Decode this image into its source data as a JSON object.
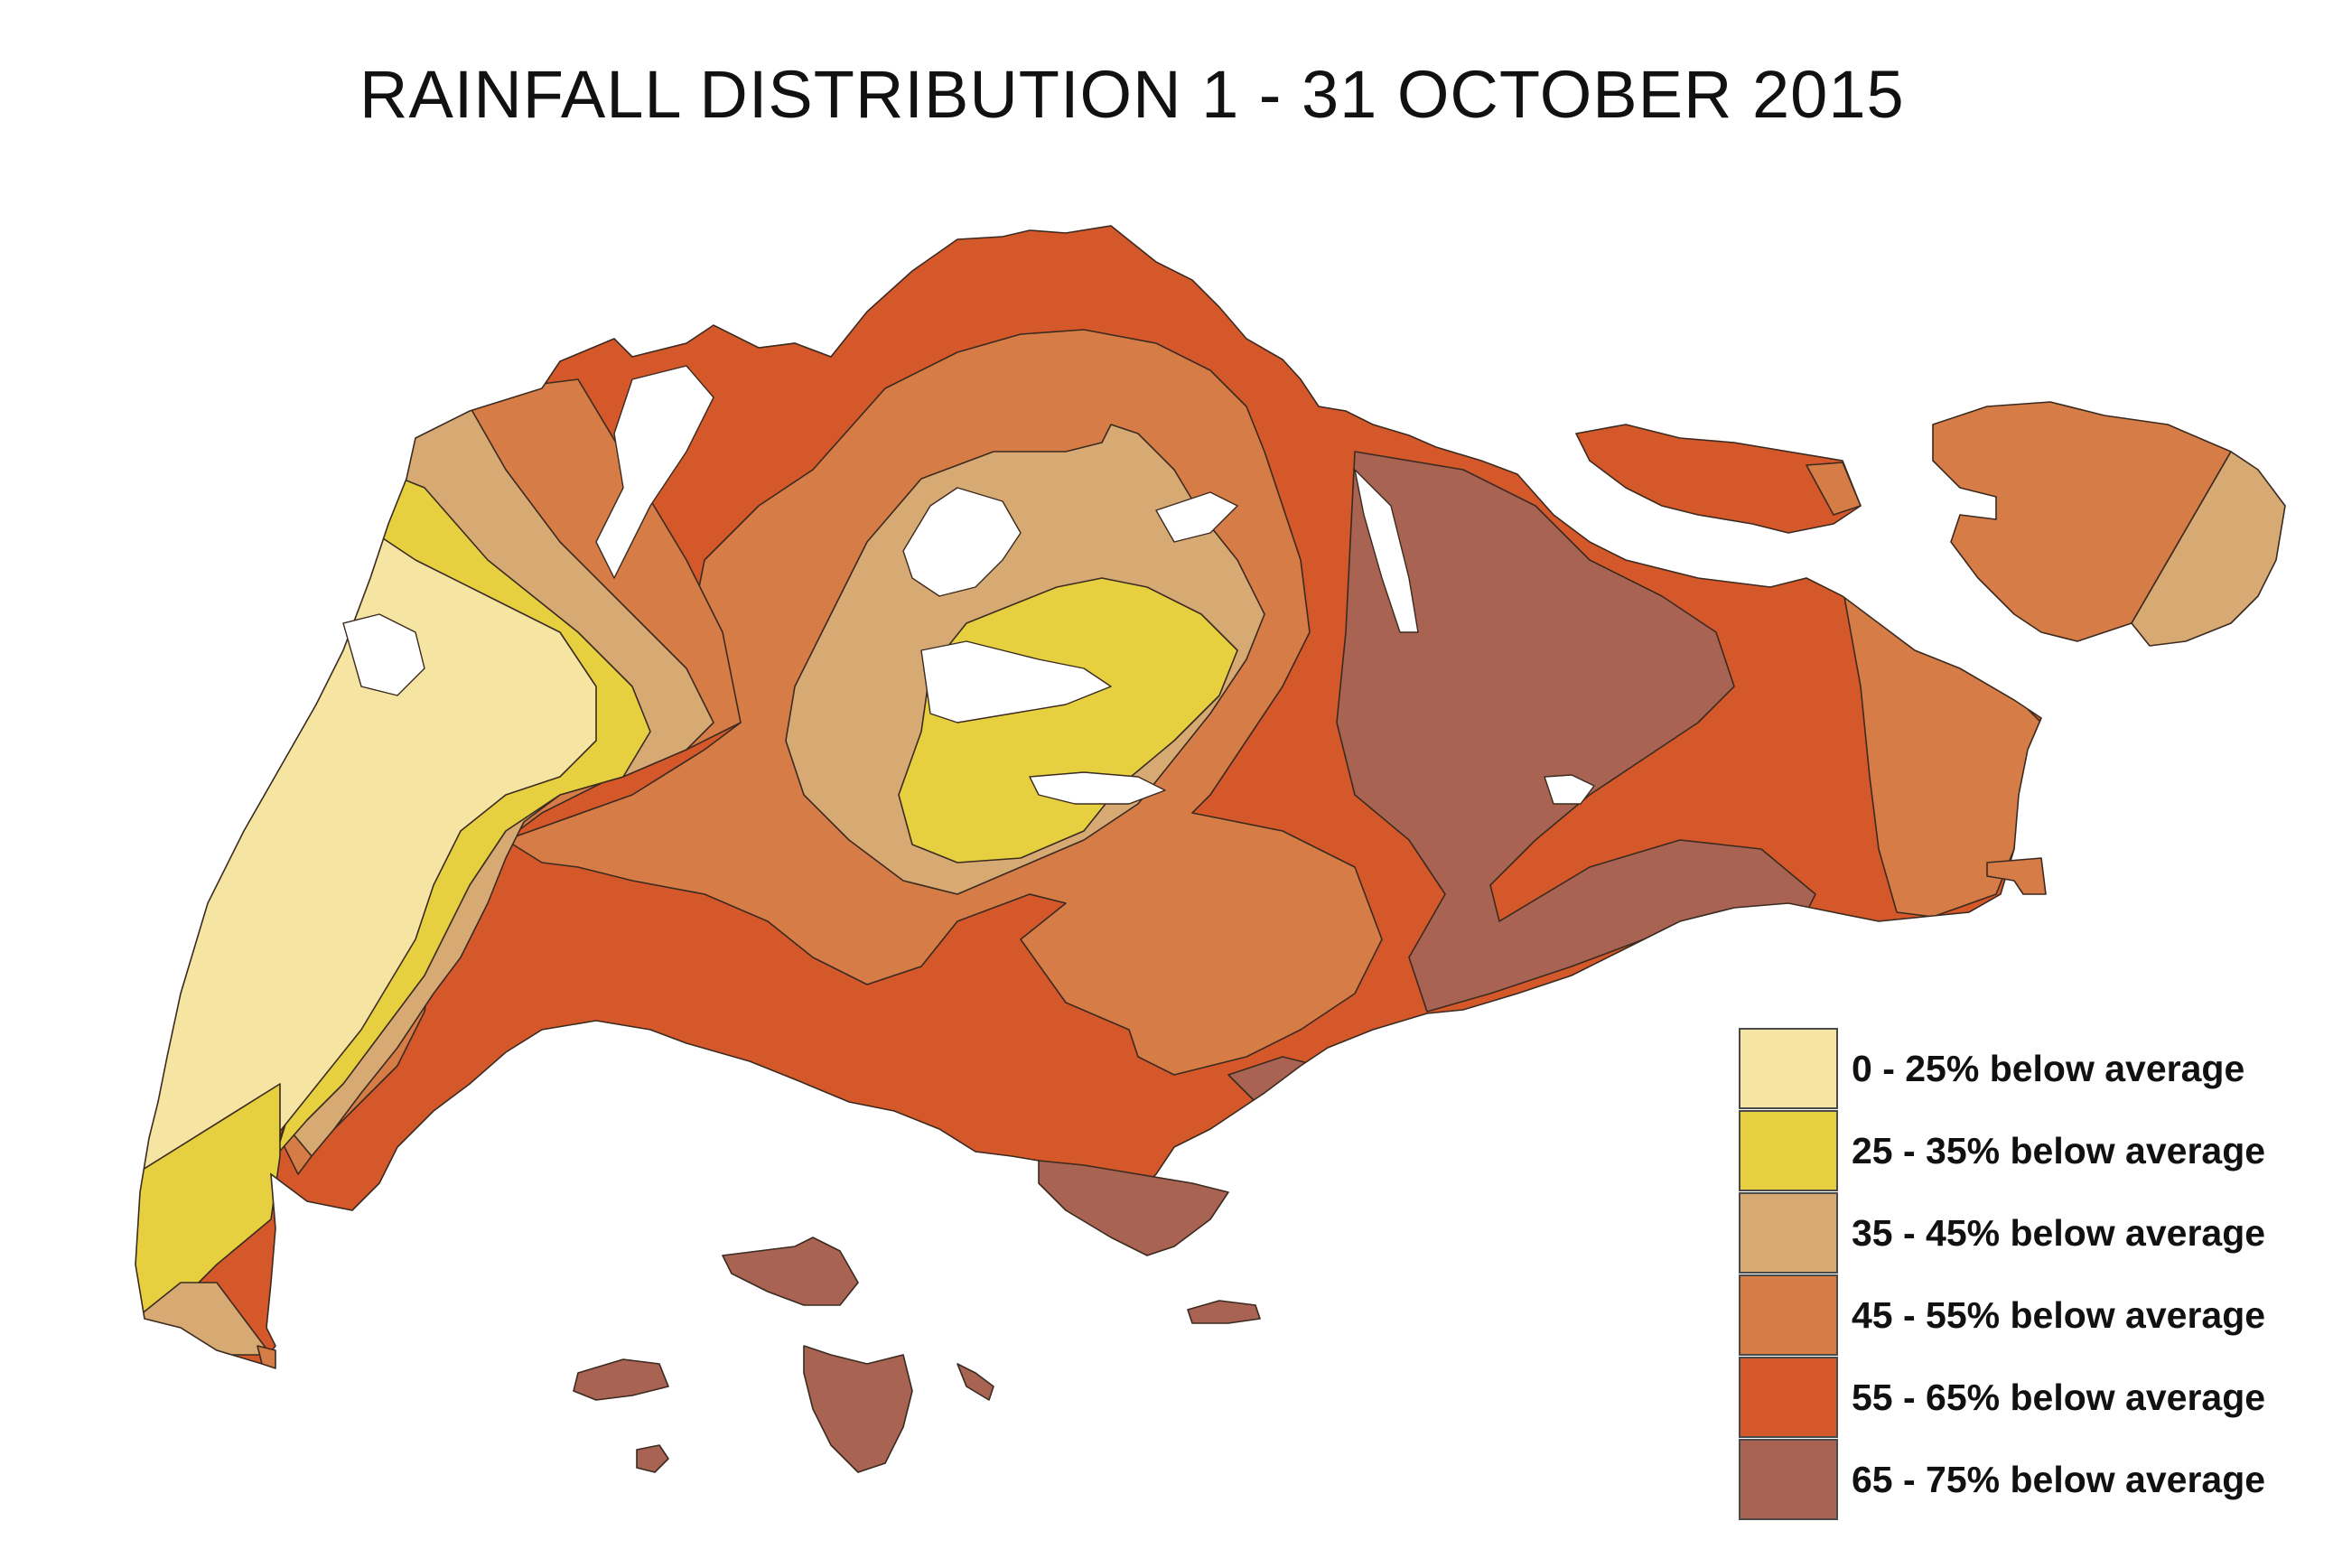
{
  "title": "RAINFALL DISTRIBUTION 1 - 31 OCTOBER 2015",
  "legend": [
    {
      "label": "0 - 25% below average",
      "color": "#F6E4A3"
    },
    {
      "label": "25 - 35% below average",
      "color": "#E6D040"
    },
    {
      "label": "35 - 45% below average",
      "color": "#D7A973"
    },
    {
      "label": "45 - 55% below average",
      "color": "#D67C47"
    },
    {
      "label": "55 - 65% below average",
      "color": "#D4582A"
    },
    {
      "label": "65 - 75% below average",
      "color": "#A86352"
    }
  ],
  "zones": [
    {
      "name": "zone-0-25",
      "level": "0 - 25% below average"
    },
    {
      "name": "zone-25-35",
      "level": "25 - 35% below average"
    },
    {
      "name": "zone-35-45",
      "level": "35 - 45% below average"
    },
    {
      "name": "zone-45-55",
      "level": "45 - 55% below average"
    },
    {
      "name": "zone-55-65",
      "level": "55 - 65% below average"
    },
    {
      "name": "zone-65-75",
      "level": "65 - 75% below average"
    }
  ]
}
